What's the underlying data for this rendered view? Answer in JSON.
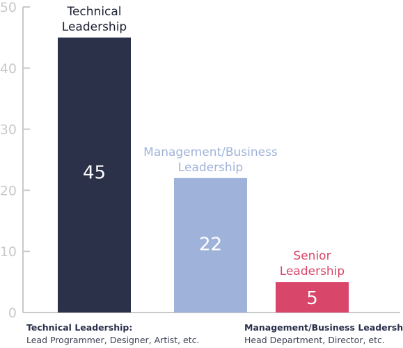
{
  "chart_data": {
    "type": "bar",
    "categories": [
      "Technical Leadership",
      "Management/Business Leadership",
      "Senior Leadership"
    ],
    "category_label_lines": [
      [
        "Technical",
        "Leadership"
      ],
      [
        "Management/Business",
        "Leadership"
      ],
      [
        "Senior",
        "Leadership"
      ]
    ],
    "values": [
      45,
      22,
      5
    ],
    "value_labels": [
      "45",
      "22",
      "5"
    ],
    "bar_colors": [
      "#2b3149",
      "#9fb3da",
      "#d8466a"
    ],
    "category_label_colors": [
      "#1c2033",
      "#9fb3da",
      "#d8466a"
    ],
    "ylim": [
      0,
      50
    ],
    "yticks": [
      "0",
      "10",
      "20",
      "30",
      "40",
      "50"
    ],
    "axis_color": "#c9c9c9",
    "grid": false,
    "legend": "none"
  },
  "footnotes": {
    "technical": {
      "title": "Technical Leadership:",
      "desc": "Lead Programmer, Designer, Artist, etc."
    },
    "management": {
      "title": "Management/Business Leadership:",
      "desc": "Head Department, Director, etc."
    }
  }
}
